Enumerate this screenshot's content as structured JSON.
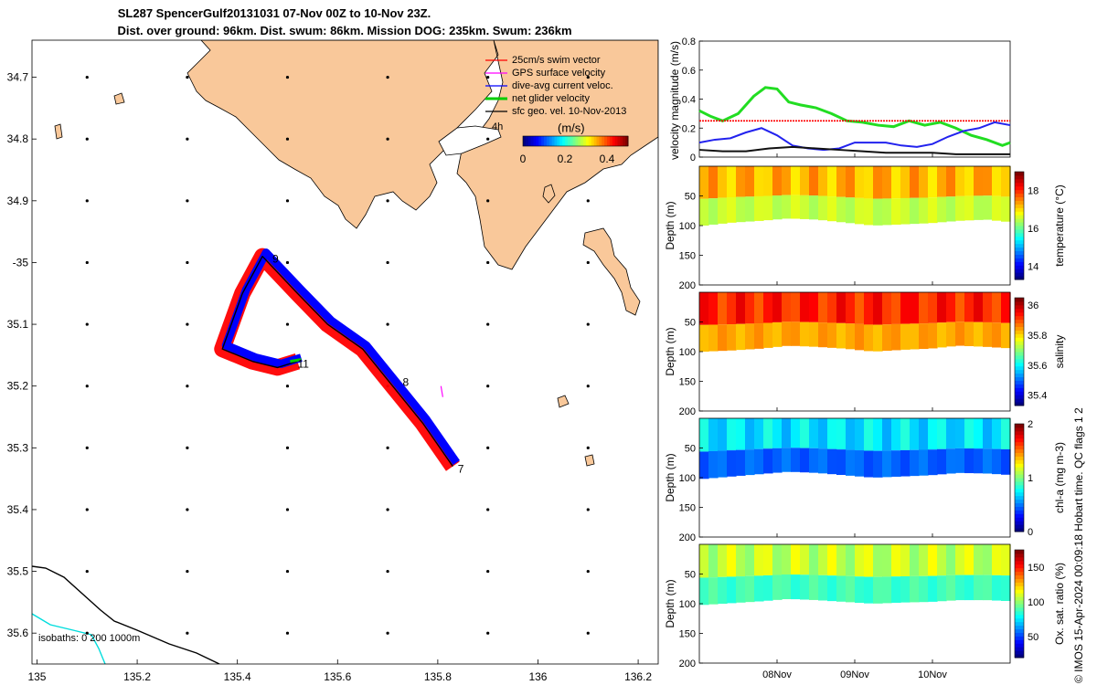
{
  "title": {
    "line1": "SL287 SpencerGulf20131031 07-Nov 00Z to 10-Nov 23Z.",
    "line2": "Dist. over ground: 96km. Dist. swum: 86km. Mission DOG: 235km. Swum: 236km"
  },
  "colors": {
    "land": "#F9C89A",
    "swim_vector": "#FF0000",
    "gps_velocity": "#FF00FF",
    "dive_avg_current": "#0000FF",
    "net_velocity": "#00CC00",
    "geo_velocity": "#000000",
    "isobath_200": "#000000",
    "isobath_1000": "#00DDDD"
  },
  "map": {
    "legend": {
      "swim_vector": "25cm/s swim vector",
      "gps_velocity": "GPS surface velocity",
      "dive_avg": "dive-avg current veloc.",
      "net_velocity": "net glider velocity",
      "geo_velocity": "sfc geo. vel. 10-Nov-2013",
      "hours": "4h"
    },
    "colorbar": {
      "unit": "(m/s)",
      "ticks": [
        "0",
        "0.2",
        "0.4"
      ],
      "range": [
        0,
        0.5
      ]
    },
    "isobaths_label": "isobaths: 0   200   1000m",
    "day_labels": [
      {
        "text": "7",
        "lon": 135.84,
        "lat": -35.34
      },
      {
        "text": "8",
        "lon": 135.73,
        "lat": -35.2
      },
      {
        "text": "9",
        "lon": 135.47,
        "lat": -35.0
      },
      {
        "text": "11",
        "lon": 135.52,
        "lat": -35.17
      }
    ],
    "lon_ticks": [
      "135",
      "135.2",
      "135.4",
      "135.6",
      "135.8",
      "136",
      "136.2"
    ],
    "lat_ticks": [
      "34.7",
      "34.8",
      "34.9",
      "-35",
      "35.1",
      "35.2",
      "35.3",
      "35.4",
      "35.5",
      "35.6"
    ],
    "lon_range": [
      134.99,
      136.24
    ],
    "lat_range": [
      -35.65,
      -34.64
    ],
    "glider_track": [
      [
        135.83,
        -35.33
      ],
      [
        135.77,
        -35.26
      ],
      [
        135.7,
        -35.19
      ],
      [
        135.65,
        -35.14
      ],
      [
        135.58,
        -35.1
      ],
      [
        135.52,
        -35.05
      ],
      [
        135.45,
        -34.99
      ],
      [
        135.41,
        -35.05
      ],
      [
        135.37,
        -35.14
      ],
      [
        135.43,
        -35.16
      ],
      [
        135.48,
        -35.17
      ],
      [
        135.52,
        -35.16
      ]
    ]
  },
  "chart_data": [
    {
      "type": "line",
      "title": "",
      "xlabel": "",
      "ylabel": "velocity magnitude (m/s)",
      "x_ticks": [
        "08Nov",
        "09Nov",
        "10Nov"
      ],
      "y_ticks": [
        "0",
        "0.2",
        "0.4",
        "0.6",
        "0.8"
      ],
      "ylim": [
        0,
        0.8
      ],
      "x_days_range": [
        7.0,
        11.0
      ],
      "series": [
        {
          "name": "net glider velocity",
          "color": "#22DD22",
          "x": [
            7.0,
            7.15,
            7.3,
            7.5,
            7.7,
            7.85,
            8.0,
            8.15,
            8.3,
            8.5,
            8.7,
            8.9,
            9.1,
            9.3,
            9.5,
            9.7,
            9.9,
            10.1,
            10.3,
            10.5,
            10.7,
            10.9,
            11.0
          ],
          "values": [
            0.32,
            0.28,
            0.25,
            0.3,
            0.42,
            0.48,
            0.47,
            0.38,
            0.36,
            0.34,
            0.3,
            0.25,
            0.24,
            0.22,
            0.21,
            0.25,
            0.22,
            0.24,
            0.2,
            0.15,
            0.12,
            0.08,
            0.1
          ]
        },
        {
          "name": "swim vector",
          "color": "#FF0000",
          "x": [
            7.0,
            11.0
          ],
          "values": [
            0.25,
            0.25
          ]
        },
        {
          "name": "dive-avg current",
          "color": "#2222EE",
          "x": [
            7.0,
            7.2,
            7.4,
            7.6,
            7.8,
            8.0,
            8.2,
            8.4,
            8.6,
            8.8,
            9.0,
            9.2,
            9.4,
            9.6,
            9.8,
            10.0,
            10.2,
            10.4,
            10.6,
            10.8,
            11.0
          ],
          "values": [
            0.1,
            0.12,
            0.13,
            0.17,
            0.2,
            0.15,
            0.08,
            0.06,
            0.05,
            0.06,
            0.1,
            0.1,
            0.1,
            0.08,
            0.07,
            0.09,
            0.14,
            0.18,
            0.2,
            0.24,
            0.22
          ]
        },
        {
          "name": "sfc geo. vel.",
          "color": "#111111",
          "x": [
            7.0,
            7.3,
            7.6,
            7.9,
            8.2,
            8.5,
            8.8,
            9.1,
            9.4,
            9.7,
            10.0,
            10.3,
            10.6,
            11.0
          ],
          "values": [
            0.05,
            0.04,
            0.04,
            0.06,
            0.07,
            0.06,
            0.05,
            0.04,
            0.03,
            0.03,
            0.03,
            0.02,
            0.02,
            0.02
          ]
        }
      ]
    },
    {
      "type": "heatmap",
      "variable": "temperature",
      "ylabel": "Depth (m)",
      "colorbar_label": "temperature (°C)",
      "y_ticks": [
        "50",
        "100",
        "150",
        "200"
      ],
      "ylim": [
        0,
        200
      ],
      "colorbar_ticks": [
        "14",
        "16",
        "18"
      ],
      "colorbar_range": [
        13.3,
        19
      ],
      "field_value": 17.0,
      "bottom_depth": [
        100,
        95,
        92,
        88,
        90,
        95,
        100,
        98,
        96,
        92,
        90,
        95
      ]
    },
    {
      "type": "heatmap",
      "variable": "salinity",
      "ylabel": "Depth (m)",
      "colorbar_label": "salinity",
      "y_ticks": [
        "50",
        "100",
        "150",
        "200"
      ],
      "ylim": [
        0,
        200
      ],
      "colorbar_ticks": [
        "35.4",
        "35.6",
        "35.8",
        "36"
      ],
      "colorbar_range": [
        35.33,
        36.05
      ],
      "field_value": 35.9,
      "bottom_depth": [
        100,
        98,
        95,
        90,
        92,
        95,
        100,
        97,
        95,
        90,
        92,
        95
      ]
    },
    {
      "type": "heatmap",
      "variable": "chl-a",
      "ylabel": "Depth (m)",
      "colorbar_label": "chl-a (mg m-3)",
      "y_ticks": [
        "50",
        "100",
        "150",
        "200"
      ],
      "ylim": [
        0,
        200
      ],
      "colorbar_ticks": [
        "0",
        "1",
        "2"
      ],
      "colorbar_range": [
        0,
        2
      ],
      "field_value": 0.6,
      "bottom_depth": [
        102,
        98,
        94,
        90,
        92,
        96,
        100,
        98,
        96,
        92,
        93,
        96
      ]
    },
    {
      "type": "heatmap",
      "variable": "oxygen saturation",
      "ylabel": "Depth (m)",
      "colorbar_label": "Ox. sat. ratio (%)",
      "y_ticks": [
        "50",
        "100",
        "150",
        "200"
      ],
      "ylim": [
        0,
        200
      ],
      "colorbar_ticks": [
        "50",
        "100",
        "150"
      ],
      "colorbar_range": [
        20,
        175
      ],
      "field_value": 100,
      "bottom_depth": [
        102,
        99,
        96,
        92,
        94,
        97,
        100,
        98,
        97,
        94,
        94,
        96
      ]
    }
  ],
  "footer_note": "© IMOS 15-Apr-2024 00:09:18 Hobart time. QC flags 1  2"
}
